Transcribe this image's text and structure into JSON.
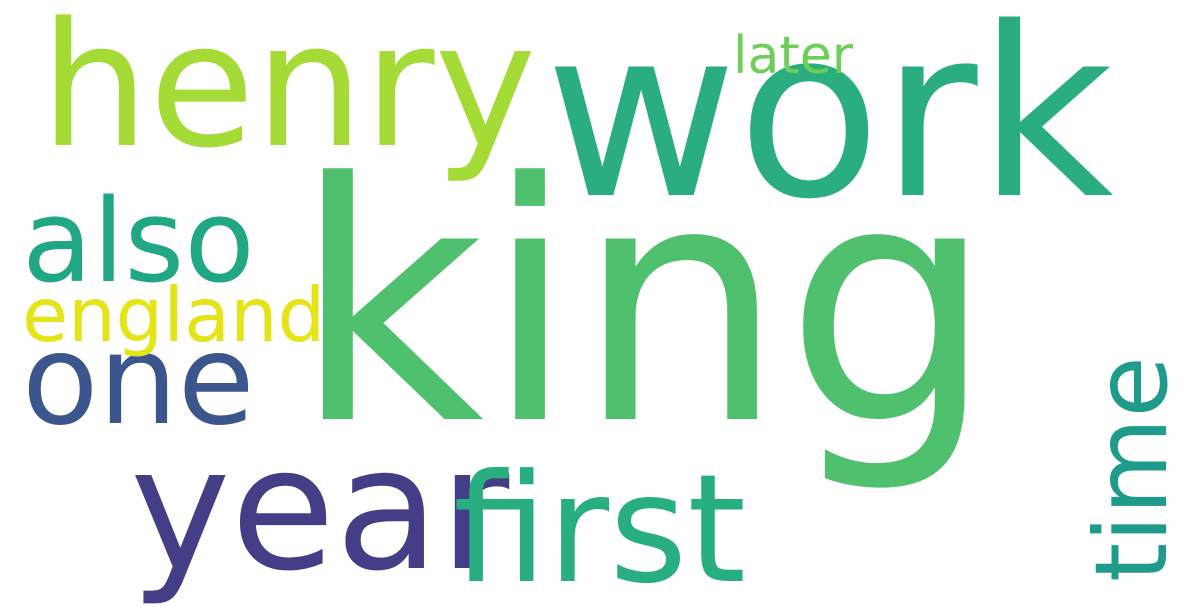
{
  "cloud": {
    "background": "#ffffff",
    "words": {
      "king": {
        "text": "king",
        "color": "#4fc16e"
      },
      "work": {
        "text": "work",
        "color": "#2aae7f"
      },
      "henry": {
        "text": "henry",
        "color": "#a5db36"
      },
      "year": {
        "text": "year",
        "color": "#433e85"
      },
      "first": {
        "text": "first",
        "color": "#29af7f"
      },
      "one": {
        "text": "one",
        "color": "#3a568c"
      },
      "also": {
        "text": "also",
        "color": "#22a785"
      },
      "england": {
        "text": "england",
        "color": "#e5e419"
      },
      "later": {
        "text": "later",
        "color": "#6ece58"
      },
      "time": {
        "text": "time",
        "color": "#1e9b8a"
      }
    }
  }
}
